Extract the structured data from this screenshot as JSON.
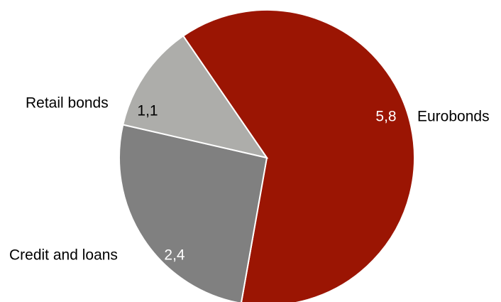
{
  "chart_data": {
    "type": "pie",
    "title": "",
    "slices": [
      {
        "label": "Eurobonds",
        "value": 5.8,
        "display": "5,8",
        "color": "#9b1503",
        "value_label_color": "#ffffff"
      },
      {
        "label": "Credit and loans",
        "value": 2.4,
        "display": "2,4",
        "color": "#808080",
        "value_label_color": "#ffffff"
      },
      {
        "label": "Retail bonds",
        "value": 1.1,
        "display": "1,1",
        "color": "#adadaa",
        "value_label_color": "#000000"
      }
    ],
    "legend": "none",
    "start_angle_deg": -34.5,
    "direction": "clockwise"
  }
}
